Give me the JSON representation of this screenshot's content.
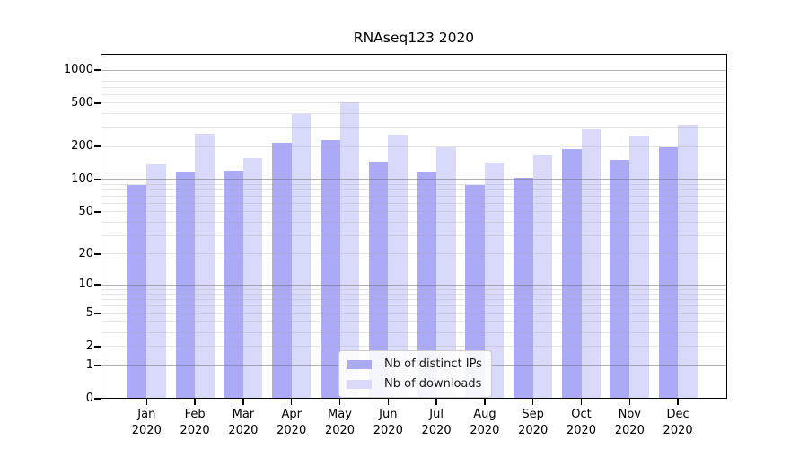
{
  "figure": {
    "title": "RNAseq123 2020",
    "background": "#ffffff"
  },
  "chart_data": {
    "type": "bar",
    "title": "RNAseq123 2020",
    "categories": [
      "Jan",
      "Feb",
      "Mar",
      "Apr",
      "May",
      "Jun",
      "Jul",
      "Aug",
      "Sep",
      "Oct",
      "Nov",
      "Dec"
    ],
    "category_year": "2020",
    "series": [
      {
        "name": "Nb of distinct IPs",
        "color": "#aaaaf6",
        "values": [
          88,
          115,
          120,
          218,
          231,
          146,
          116,
          89,
          104,
          189,
          152,
          196
        ]
      },
      {
        "name": "Nb of downloads",
        "color": "#d9d9f9",
        "values": [
          137,
          262,
          158,
          398,
          505,
          257,
          196,
          142,
          167,
          289,
          253,
          315
        ]
      }
    ],
    "yscale": "log1p",
    "y_ticks": [
      0,
      1,
      2,
      5,
      10,
      20,
      50,
      100,
      200,
      500,
      1000
    ],
    "ylim": [
      0,
      1385
    ],
    "xlabel": "",
    "ylabel": "",
    "grid": {
      "orientation": "horizontal",
      "major_at": [
        1,
        10,
        100,
        1000
      ],
      "minor": "2-9 per decade"
    },
    "legend": {
      "position": "lower center",
      "entries": [
        "Nb of distinct IPs",
        "Nb of downloads"
      ]
    }
  },
  "colors": {
    "spine": "#000000",
    "major_grid": "rgba(115,115,115,0.55)",
    "minor_grid": "rgba(170,170,170,0.30)",
    "text": "#000000",
    "legend_border": "#cccccc",
    "legend_background": "#ffffff"
  }
}
